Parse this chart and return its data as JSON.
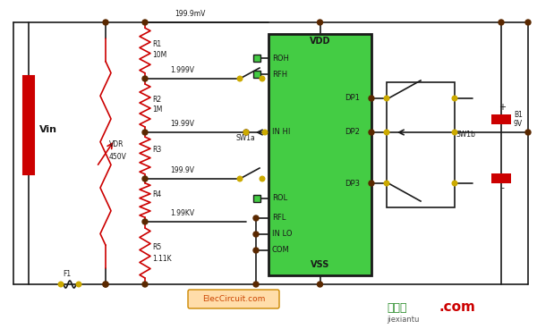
{
  "bg_color": "#ffffff",
  "line_color": "#1a1a1a",
  "red_color": "#cc0000",
  "resistor_color": "#cc0000",
  "node_color": "#5a2800",
  "contact_color": "#ccaa00",
  "ic_fill": "#44cc44",
  "ic_border": "#1a1a1a",
  "label_fontsize": 7,
  "small_fontsize": 6,
  "elec_label": "ElecCircuit.com",
  "watermark_cn": "接线图",
  "watermark_pinyin": "jiexiantu",
  "watermark_color_cn": "#228822",
  "watermark_color_com": "#cc0000"
}
